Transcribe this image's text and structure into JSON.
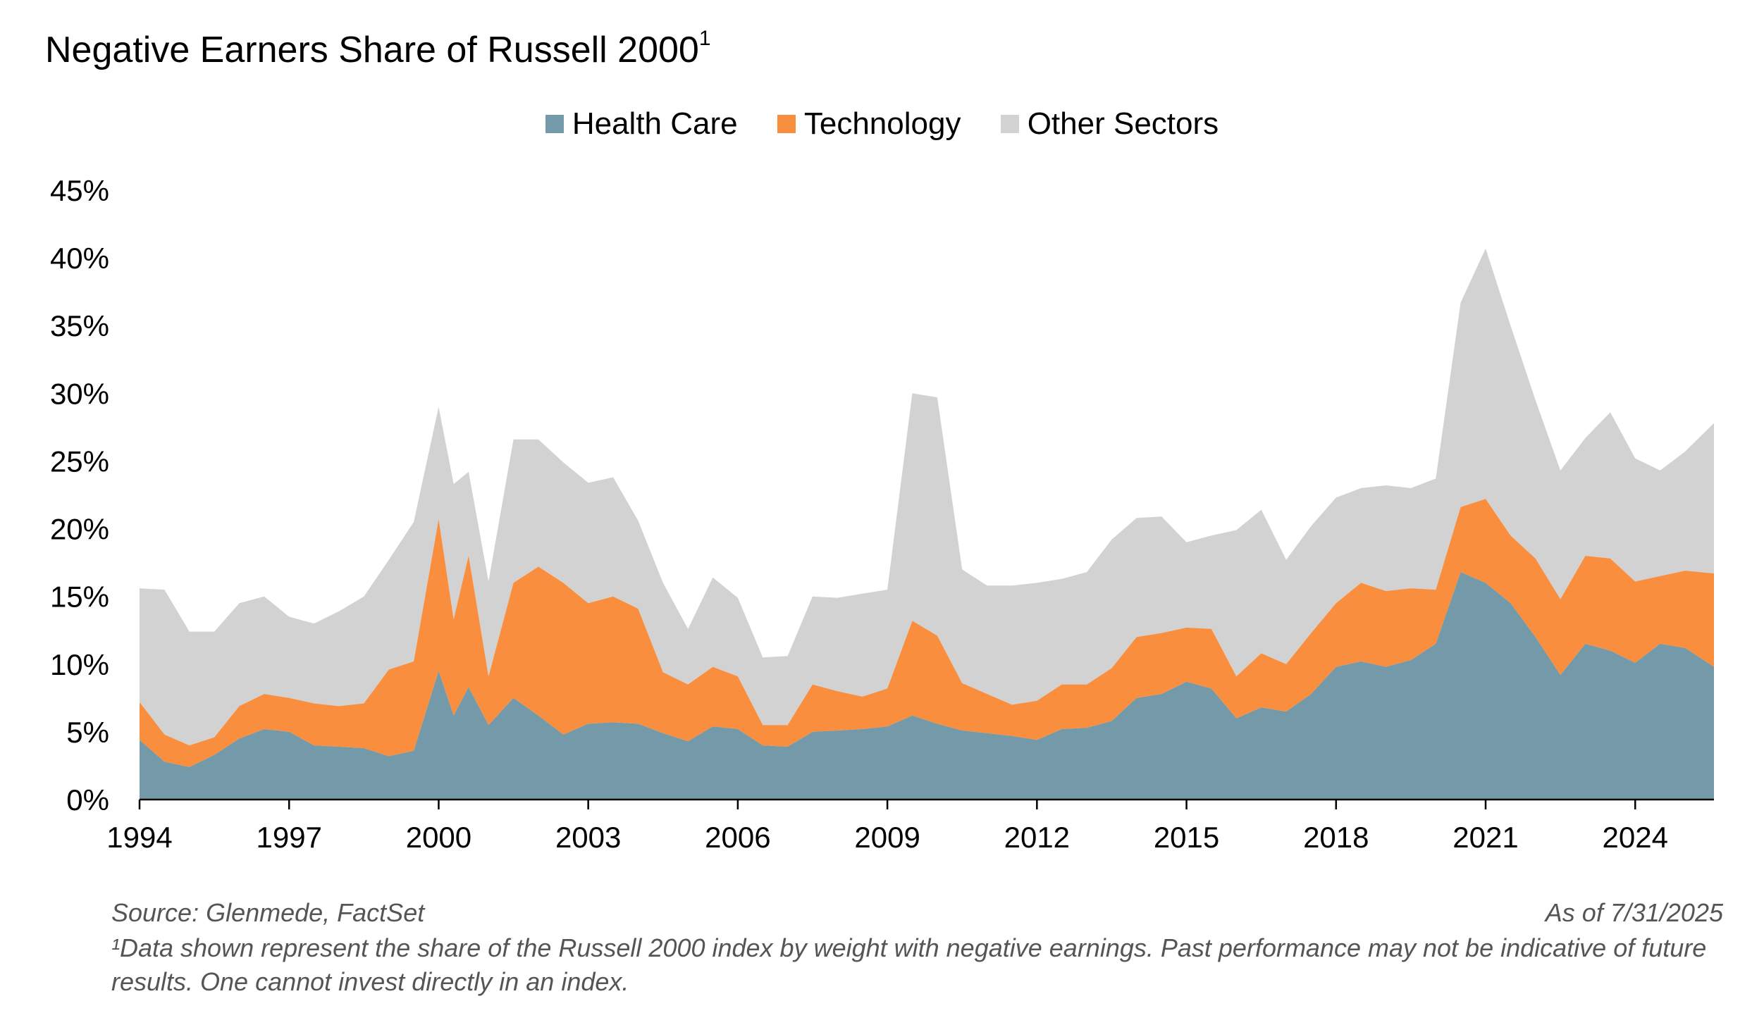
{
  "title": "Negative Earners Share of Russell 2000",
  "title_superscript": "1",
  "legend": [
    {
      "label": "Health Care",
      "color": "#7499A9"
    },
    {
      "label": "Technology",
      "color": "#F98F3E"
    },
    {
      "label": "Other Sectors",
      "color": "#D2D2D2"
    }
  ],
  "source": "Source: Glenmede, FactSet",
  "as_of": "As of 7/31/2025",
  "footnote_line1": "¹Data shown represent the share of the Russell 2000 index by weight with negative earnings. Past performance may not be indicative of future",
  "footnote_line2": "results. One cannot invest directly in an index.",
  "chart_data": {
    "type": "area",
    "stacked": true,
    "title": "Negative Earners Share of Russell 2000",
    "xlabel": "",
    "ylabel": "",
    "ylim": [
      0,
      45
    ],
    "xlim": [
      1994,
      2025.58
    ],
    "y_ticks": [
      "0%",
      "5%",
      "10%",
      "15%",
      "20%",
      "25%",
      "30%",
      "35%",
      "40%",
      "45%"
    ],
    "x_ticks": [
      "1994",
      "1997",
      "2000",
      "2003",
      "2006",
      "2009",
      "2012",
      "2015",
      "2018",
      "2021",
      "2024"
    ],
    "grid": false,
    "legend_position": "top-center",
    "x": [
      1994.0,
      1994.5,
      1995.0,
      1995.5,
      1996.0,
      1996.5,
      1997.0,
      1997.5,
      1998.0,
      1998.5,
      1999.0,
      1999.5,
      2000.0,
      2000.3,
      2000.6,
      2001.0,
      2001.5,
      2002.0,
      2002.5,
      2003.0,
      2003.5,
      2004.0,
      2004.5,
      2005.0,
      2005.5,
      2006.0,
      2006.5,
      2007.0,
      2007.5,
      2008.0,
      2008.5,
      2009.0,
      2009.5,
      2010.0,
      2010.5,
      2011.0,
      2011.5,
      2012.0,
      2012.5,
      2013.0,
      2013.5,
      2014.0,
      2014.5,
      2015.0,
      2015.5,
      2016.0,
      2016.5,
      2017.0,
      2017.5,
      2018.0,
      2018.5,
      2019.0,
      2019.5,
      2020.0,
      2020.5,
      2021.0,
      2021.5,
      2022.0,
      2022.5,
      2023.0,
      2023.5,
      2024.0,
      2024.5,
      2025.0,
      2025.58
    ],
    "series": [
      {
        "name": "Health Care",
        "values": [
          4.4,
          2.8,
          2.4,
          3.3,
          4.5,
          5.2,
          5.0,
          4.0,
          3.9,
          3.8,
          3.2,
          3.6,
          9.5,
          6.2,
          8.3,
          5.5,
          7.5,
          6.2,
          4.8,
          5.6,
          5.7,
          5.6,
          4.9,
          4.3,
          5.4,
          5.2,
          4.0,
          3.9,
          5.0,
          5.1,
          5.2,
          5.4,
          6.2,
          5.6,
          5.1,
          4.9,
          4.7,
          4.4,
          5.2,
          5.3,
          5.8,
          7.5,
          7.8,
          8.7,
          8.2,
          6.0,
          6.8,
          6.5,
          7.8,
          9.8,
          10.2,
          9.8,
          10.3,
          11.5,
          16.8,
          16.0,
          14.5,
          12.0,
          9.2,
          11.5,
          11.0,
          10.1,
          11.5,
          11.2,
          9.8
        ]
      },
      {
        "name": "Technology",
        "values": [
          2.8,
          2.0,
          1.6,
          1.3,
          2.4,
          2.6,
          2.5,
          3.1,
          3.0,
          3.3,
          6.4,
          6.6,
          11.2,
          7.1,
          9.7,
          3.6,
          8.5,
          11.0,
          11.2,
          8.9,
          9.3,
          8.5,
          4.5,
          4.2,
          4.4,
          3.9,
          1.5,
          1.6,
          3.5,
          2.9,
          2.4,
          2.8,
          7.0,
          6.5,
          3.5,
          2.9,
          2.3,
          2.9,
          3.3,
          3.2,
          3.9,
          4.5,
          4.5,
          4.0,
          4.4,
          3.1,
          4.0,
          3.5,
          4.5,
          4.7,
          5.8,
          5.6,
          5.3,
          4.0,
          4.8,
          6.2,
          5.0,
          5.8,
          5.6,
          6.5,
          6.8,
          6.0,
          5.0,
          5.7,
          6.9
        ]
      },
      {
        "name": "Other Sectors",
        "values": [
          8.4,
          10.7,
          8.4,
          7.8,
          7.6,
          7.2,
          6.0,
          5.9,
          7.0,
          7.9,
          8.1,
          10.3,
          8.3,
          10.0,
          6.2,
          7.0,
          10.6,
          9.4,
          8.9,
          8.9,
          8.8,
          6.5,
          6.6,
          4.1,
          6.6,
          5.8,
          5.0,
          5.1,
          6.5,
          6.9,
          7.6,
          7.3,
          16.8,
          17.6,
          8.4,
          8.0,
          8.8,
          8.7,
          7.8,
          8.3,
          9.5,
          8.8,
          8.6,
          6.3,
          6.9,
          10.8,
          10.6,
          7.7,
          7.9,
          7.8,
          7.0,
          7.8,
          7.4,
          8.2,
          15.1,
          18.5,
          15.5,
          11.7,
          9.5,
          8.7,
          10.8,
          9.1,
          7.8,
          8.8,
          11.1
        ]
      }
    ]
  }
}
